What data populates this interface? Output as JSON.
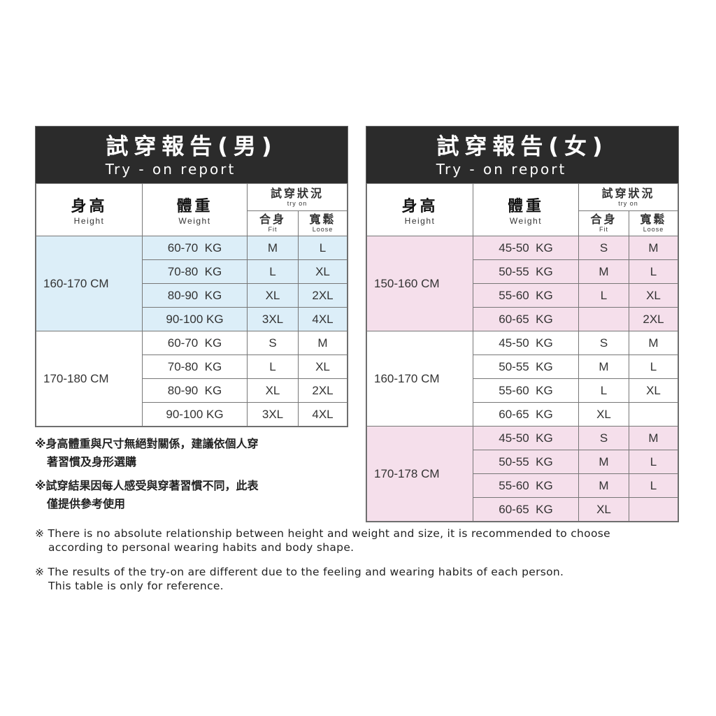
{
  "headers": {
    "height_zh": "身高",
    "height_en": "Height",
    "weight_zh": "體重",
    "weight_en": "Weight",
    "try_zh": "試穿狀況",
    "try_en": "try on",
    "fit_zh": "合身",
    "fit_en": "Fit",
    "loose_zh": "寬鬆",
    "loose_en": "Loose"
  },
  "men": {
    "title": "試穿報告(男)",
    "subtitle": "Try - on report",
    "groups": [
      {
        "height": "160-170 CM",
        "rows": [
          [
            "60-70  KG",
            "M",
            "L"
          ],
          [
            "70-80  KG",
            "L",
            "XL"
          ],
          [
            "80-90  KG",
            "XL",
            "2XL"
          ],
          [
            "90-100 KG",
            "3XL",
            "4XL"
          ]
        ]
      },
      {
        "height": "170-180 CM",
        "rows": [
          [
            "60-70  KG",
            "S",
            "M"
          ],
          [
            "70-80  KG",
            "L",
            "XL"
          ],
          [
            "80-90  KG",
            "XL",
            "2XL"
          ],
          [
            "90-100 KG",
            "3XL",
            "4XL"
          ]
        ]
      }
    ]
  },
  "women": {
    "title": "試穿報告(女)",
    "subtitle": "Try - on report",
    "groups": [
      {
        "height": "150-160 CM",
        "rows": [
          [
            "45-50  KG",
            "S",
            "M"
          ],
          [
            "50-55  KG",
            "M",
            "L"
          ],
          [
            "55-60  KG",
            "L",
            "XL"
          ],
          [
            "60-65  KG",
            "",
            "2XL"
          ]
        ]
      },
      {
        "height": "160-170 CM",
        "rows": [
          [
            "45-50  KG",
            "S",
            "M"
          ],
          [
            "50-55  KG",
            "M",
            "L"
          ],
          [
            "55-60  KG",
            "L",
            "XL"
          ],
          [
            "60-65  KG",
            "XL",
            ""
          ]
        ]
      },
      {
        "height": "170-178 CM",
        "rows": [
          [
            "45-50  KG",
            "S",
            "M"
          ],
          [
            "50-55  KG",
            "M",
            "L"
          ],
          [
            "55-60  KG",
            "M",
            "L"
          ],
          [
            "60-65  KG",
            "XL",
            ""
          ]
        ]
      }
    ]
  },
  "notes_zh": [
    "※身高體重與尺寸無絕對關係，建議依個人穿",
    "著習慣及身形選購",
    "※試穿結果因每人感受與穿著習慣不同，此表",
    "僅提供參考使用"
  ],
  "notes_en": [
    "※ There is no absolute relationship between height and weight and size, it is recommended to choose",
    "according to personal wearing habits and body shape.",
    "※ The results of the try-on are different due to the feeling and wearing habits of each person.",
    "This table is only for reference."
  ],
  "colors": {
    "header": "#2b2b2b",
    "men_band": "#dceef8",
    "women_band": "#f5dfeb"
  }
}
